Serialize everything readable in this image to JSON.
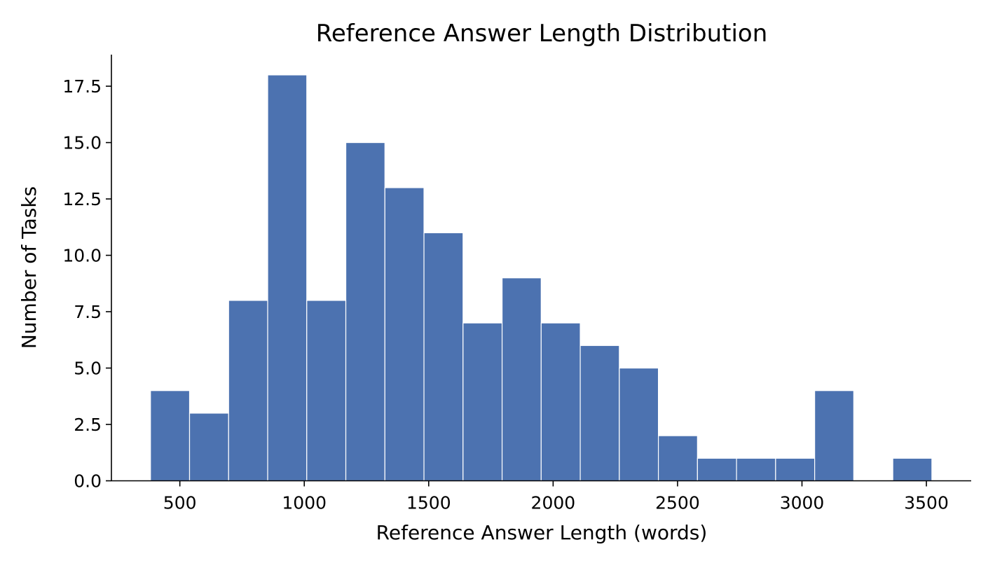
{
  "chart_data": {
    "type": "bar",
    "title": "Reference Answer Length Distribution",
    "xlabel": "Reference Answer Length (words)",
    "ylabel": "Number of Tasks",
    "bin_edges": [
      382,
      539,
      696,
      853,
      1010,
      1167,
      1324,
      1481,
      1638,
      1795,
      1952,
      2109,
      2266,
      2423,
      2580,
      2737,
      2894,
      3051,
      3208,
      3365,
      3522
    ],
    "values": [
      4,
      3,
      8,
      18,
      8,
      15,
      13,
      11,
      7,
      9,
      7,
      6,
      5,
      2,
      1,
      1,
      1,
      4,
      0,
      1
    ],
    "xlim": [
      225,
      3680
    ],
    "ylim": [
      0,
      18.9
    ],
    "x_ticks": [
      500,
      1000,
      1500,
      2000,
      2500,
      3000,
      3500
    ],
    "x_tick_labels": [
      "500",
      "1000",
      "1500",
      "2000",
      "2500",
      "3000",
      "3500"
    ],
    "y_ticks": [
      0,
      2.5,
      5,
      7.5,
      10,
      12.5,
      15,
      17.5
    ],
    "y_tick_labels": [
      "0.0",
      "2.5",
      "5.0",
      "7.5",
      "10.0",
      "12.5",
      "15.0",
      "17.5"
    ],
    "bar_color": "#4c72b0",
    "bar_edge_color": "#ffffff",
    "grid": false,
    "legend": "none"
  }
}
